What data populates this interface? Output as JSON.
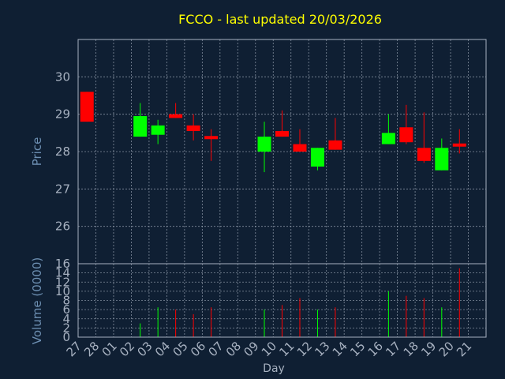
{
  "chart_data": {
    "type": "candlestick",
    "title": "FCCO - last updated 20/03/2026",
    "xlabel": "Day",
    "price_ylabel": "Price",
    "volume_ylabel": "Volume (0000)",
    "price_ylim": [
      25,
      31
    ],
    "price_yticks": [
      "26",
      "27",
      "28",
      "29",
      "30"
    ],
    "volume_ylim": [
      0,
      16
    ],
    "volume_yticks": [
      "0",
      "2",
      "4",
      "6",
      "8",
      "10",
      "12",
      "14",
      "16"
    ],
    "grid": true,
    "x_ticks": [
      "27",
      "28",
      "01",
      "02",
      "03",
      "04",
      "05",
      "06",
      "07",
      "08",
      "09",
      "10",
      "11",
      "12",
      "13",
      "14",
      "15",
      "16",
      "17",
      "18",
      "19",
      "20",
      "21"
    ],
    "candles": [
      {
        "day": "27",
        "open": 29.6,
        "close": 28.8,
        "high": 29.6,
        "low": 28.8,
        "volume": 0
      },
      {
        "day": "02",
        "open": 28.4,
        "close": 28.95,
        "high": 29.3,
        "low": 28.4,
        "volume": 3
      },
      {
        "day": "03",
        "open": 28.45,
        "close": 28.7,
        "high": 28.85,
        "low": 28.2,
        "volume": 6.5
      },
      {
        "day": "04",
        "open": 29.0,
        "close": 28.9,
        "high": 29.3,
        "low": 28.9,
        "volume": 6
      },
      {
        "day": "05",
        "open": 28.7,
        "close": 28.55,
        "high": 29.0,
        "low": 28.3,
        "volume": 5
      },
      {
        "day": "06",
        "open": 28.4,
        "close": 28.35,
        "high": 28.6,
        "low": 27.75,
        "volume": 6.5
      },
      {
        "day": "09",
        "open": 28.0,
        "close": 28.4,
        "high": 28.8,
        "low": 27.45,
        "volume": 6
      },
      {
        "day": "10",
        "open": 28.55,
        "close": 28.4,
        "high": 29.1,
        "low": 28.4,
        "volume": 7
      },
      {
        "day": "11",
        "open": 28.2,
        "close": 28.0,
        "high": 28.6,
        "low": 28.0,
        "volume": 8.5
      },
      {
        "day": "12",
        "open": 27.6,
        "close": 28.1,
        "high": 28.1,
        "low": 27.5,
        "volume": 6
      },
      {
        "day": "13",
        "open": 28.3,
        "close": 28.05,
        "high": 28.9,
        "low": 28.05,
        "volume": 6.5
      },
      {
        "day": "16",
        "open": 28.2,
        "close": 28.5,
        "high": 29.0,
        "low": 28.2,
        "volume": 10
      },
      {
        "day": "17",
        "open": 28.65,
        "close": 28.25,
        "high": 29.25,
        "low": 28.2,
        "volume": 9
      },
      {
        "day": "18",
        "open": 28.1,
        "close": 27.75,
        "high": 29.05,
        "low": 27.7,
        "volume": 8.5
      },
      {
        "day": "19",
        "open": 27.5,
        "close": 28.1,
        "high": 28.35,
        "low": 27.5,
        "volume": 6.5
      },
      {
        "day": "20",
        "open": 28.2,
        "close": 28.15,
        "high": 28.6,
        "low": 27.95,
        "volume": 15
      }
    ],
    "colors": {
      "background": "#0f1f33",
      "axis": "#a7b1c0",
      "label": "#6d8fb2",
      "title": "#ffff00",
      "up": "#00ff00",
      "down": "#ff0000"
    }
  }
}
